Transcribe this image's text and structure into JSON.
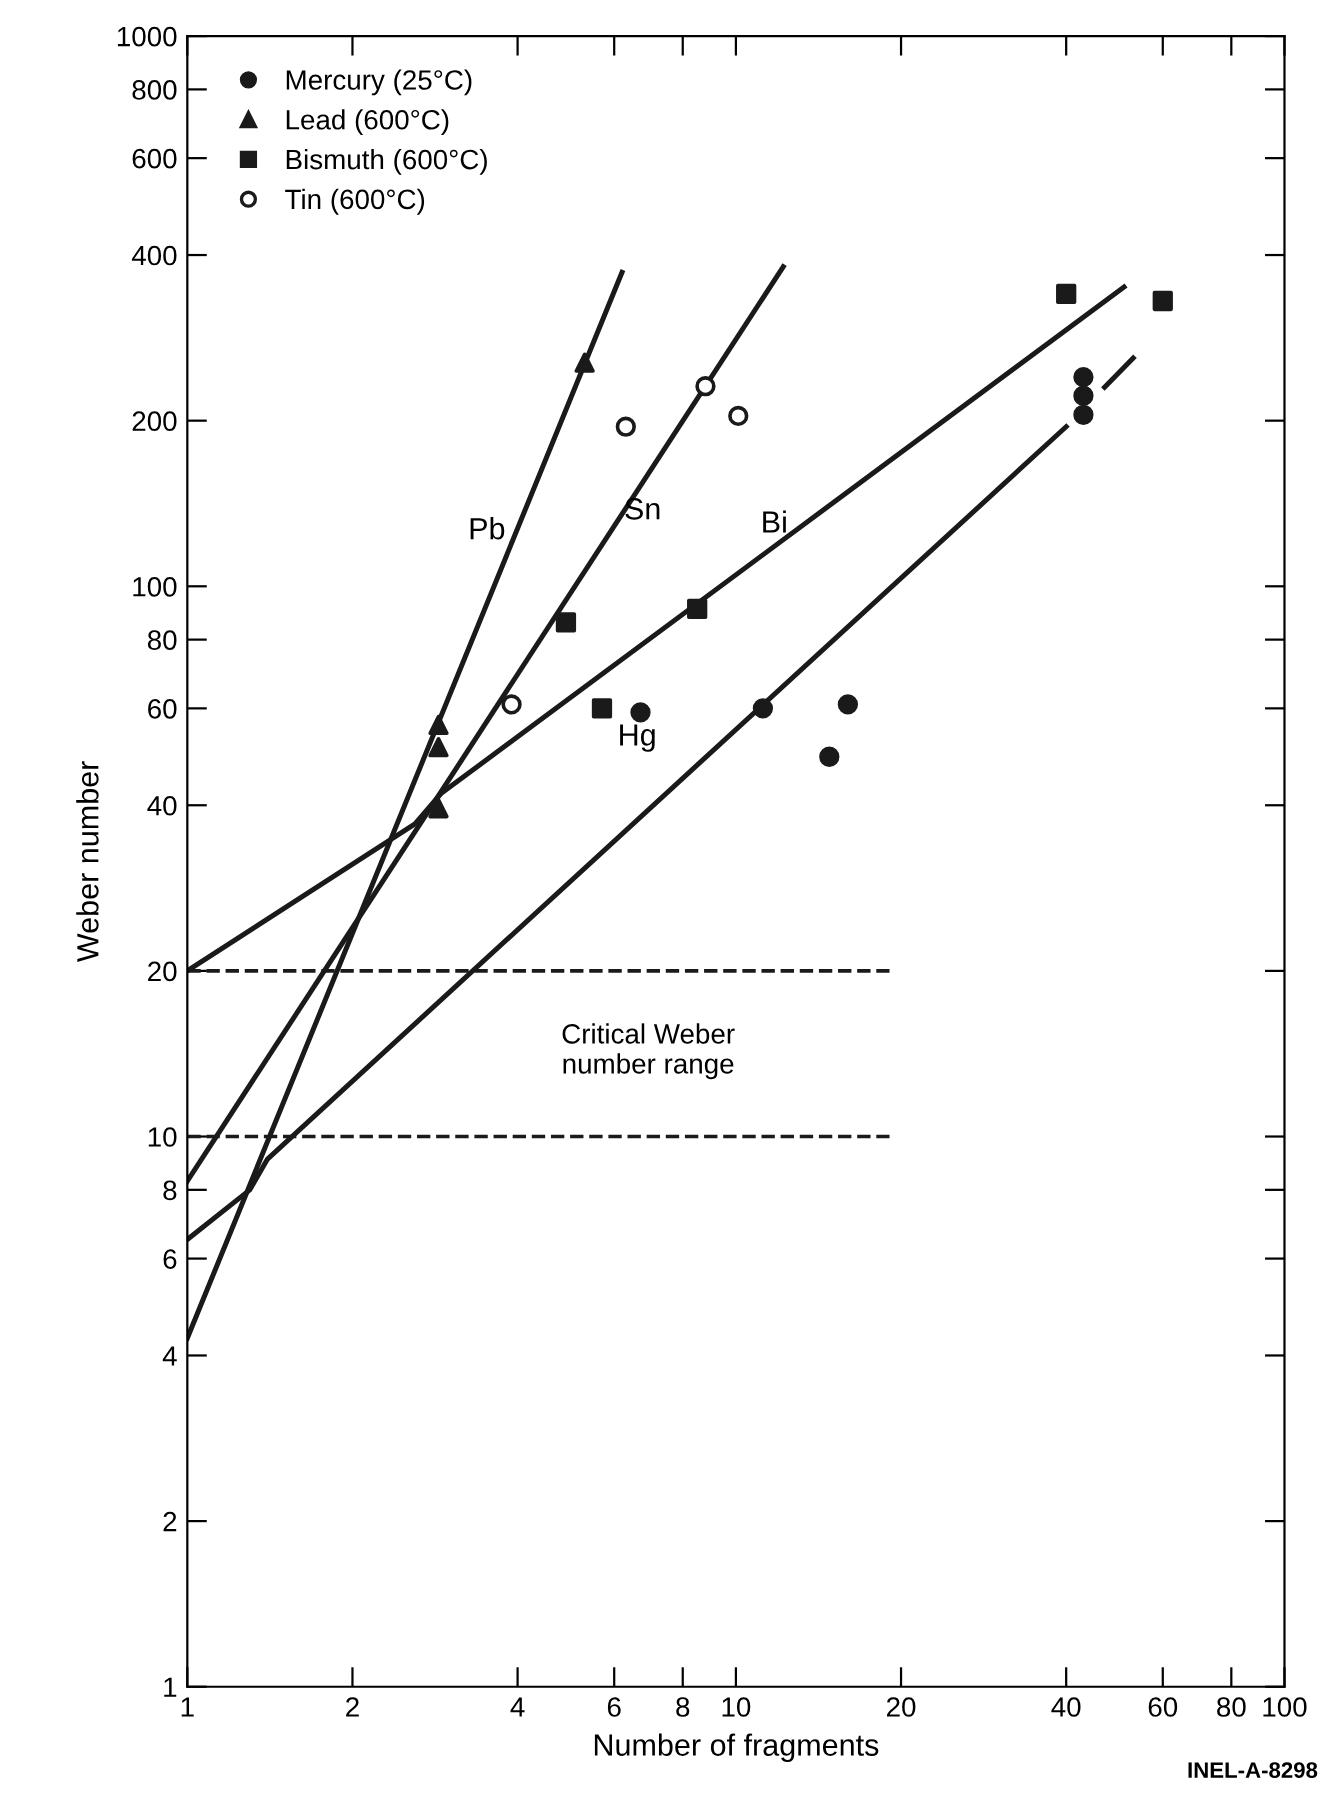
{
  "chart_data": {
    "type": "scatter",
    "xlabel": "Number of fragments",
    "ylabel": "Weber number",
    "log": "xy",
    "xlim": [
      1,
      100
    ],
    "ylim": [
      1,
      1000
    ],
    "xticks": [
      1,
      2,
      4,
      6,
      8,
      10,
      20,
      40,
      60,
      80,
      100
    ],
    "yticks": [
      1,
      2,
      4,
      6,
      8,
      10,
      20,
      40,
      60,
      80,
      100,
      200,
      400,
      600,
      800,
      1000
    ],
    "grid": false,
    "legend": "top left",
    "series": [
      {
        "name": "Mercury (25°C)",
        "marker": "circle",
        "color": "#1a1a1a",
        "x": [
          6.7,
          11.2,
          16,
          14.8,
          43,
          43,
          43
        ],
        "values": [
          59,
          60,
          61,
          49,
          240,
          222,
          205
        ]
      },
      {
        "name": "Lead (600°C)",
        "marker": "triangle",
        "color": "#1a1a1a",
        "x": [
          2.87,
          2.87,
          2.87,
          5.3
        ],
        "values": [
          56,
          51,
          39.5,
          255
        ]
      },
      {
        "name": "Bismuth (600°C)",
        "marker": "square",
        "color": "#1a1a1a",
        "x": [
          4.9,
          5.7,
          8.5,
          40,
          60
        ],
        "values": [
          86,
          60,
          91,
          340,
          330
        ]
      },
      {
        "name": "Tin (600°C)",
        "marker": "circle",
        "color": "#ffffff",
        "x": [
          3.9,
          6.3,
          8.8,
          10.1
        ],
        "values": [
          61,
          195,
          231,
          204
        ]
      },
      {
        "type": "line",
        "color": "#1a1a1a",
        "x": [
          1,
          6.2
        ],
        "values": [
          4.3,
          372
        ]
      },
      {
        "type": "line",
        "color": "#1a1a1a",
        "x": [
          1,
          12.2
        ],
        "values": [
          8.3,
          381
        ]
      },
      {
        "type": "line",
        "color": "#1a1a1a",
        "x": [
          1,
          2.6,
          2.9,
          51
        ],
        "values": [
          20,
          37,
          42,
          350
        ]
      },
      {
        "type": "line",
        "color": "#1a1a1a",
        "x": [
          1,
          1.3,
          1.4,
          40
        ],
        "values": [
          6.5,
          8,
          9.1,
          195
        ]
      },
      {
        "type": "line",
        "color": "#1a1a1a",
        "x": [
          47,
          53
        ],
        "values": [
          230,
          260
        ]
      }
    ],
    "ref_lines": [
      {
        "axis": "y",
        "value": 20,
        "line_style": "dashed",
        "color": "#1a1a1a"
      },
      {
        "axis": "y",
        "value": 10,
        "line_style": "dashed",
        "color": "#1a1a1a"
      }
    ],
    "annotations": [
      "Pb",
      "Sn",
      "Bi",
      "Hg",
      "Critical Weber\nnumber range",
      "INEL-A-8298"
    ]
  }
}
